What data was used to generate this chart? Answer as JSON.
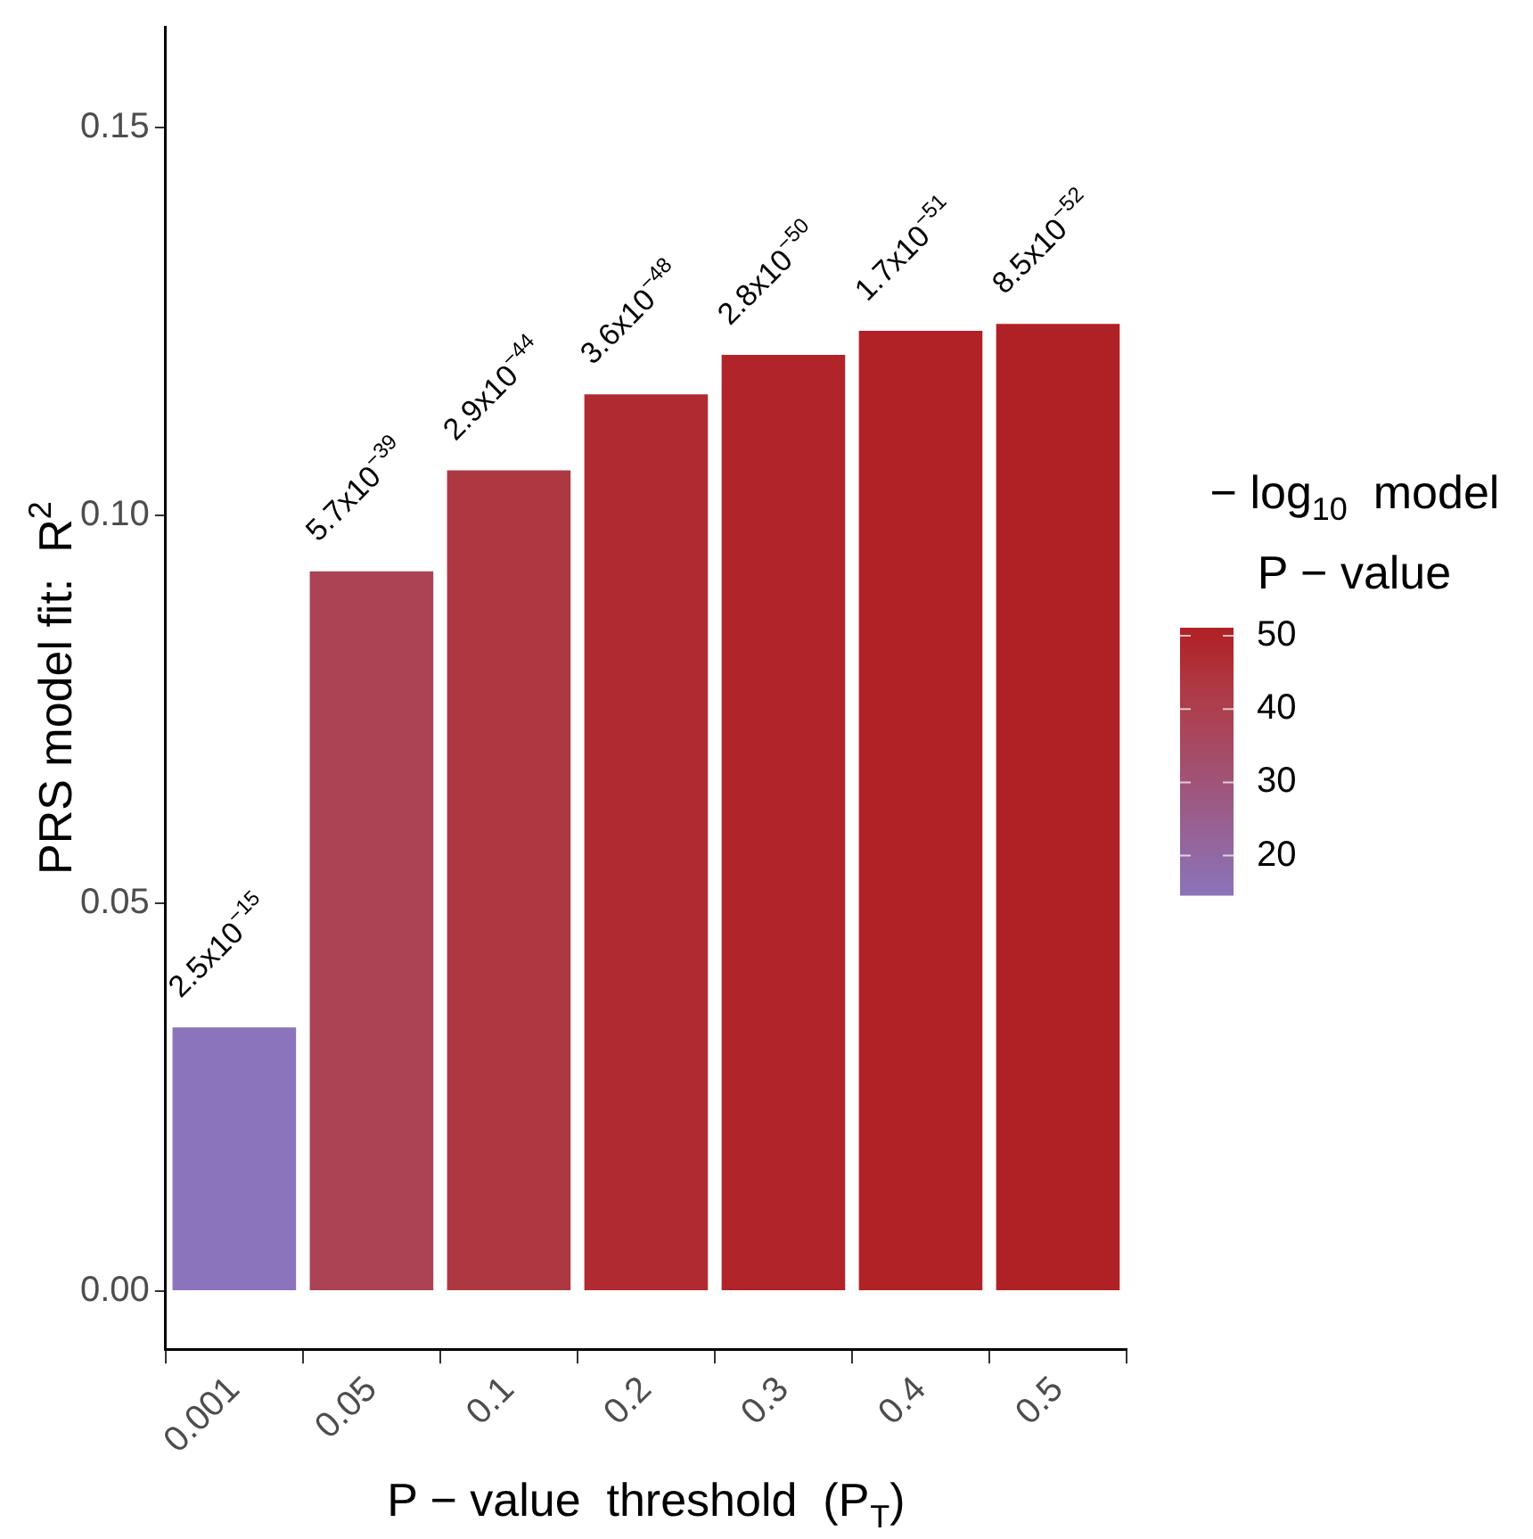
{
  "chart_data": {
    "type": "bar",
    "xlabel": "P − value  threshold  (P$_{T}$)",
    "ylabel": "PRS model fit:  R$^{2}$",
    "legend_title": "− log$_{10}$  model\nP − value",
    "categories": [
      "0.001",
      "0.05",
      "0.1",
      "0.2",
      "0.3",
      "0.4",
      "0.5"
    ],
    "values": [
      0.034,
      0.0928,
      0.1058,
      0.1156,
      0.1207,
      0.1238,
      0.1247
    ],
    "colors": [
      "#8b74bb",
      "#ab4355",
      "#ae3842",
      "#b02a31",
      "#b0242a",
      "#b02226",
      "#b02125"
    ],
    "annotations": [
      {
        "text": "2.5x10$^{−15}$",
        "x": "0.001",
        "y": 0.034
      },
      {
        "text": "5.7x10$^{−39}$",
        "x": "0.05",
        "y": 0.0928
      },
      {
        "text": "2.9x10$^{−44}$",
        "x": "0.1",
        "y": 0.1058
      },
      {
        "text": "3.6x10$^{−48}$",
        "x": "0.2",
        "y": 0.1156
      },
      {
        "text": "2.8x10$^{−50}$",
        "x": "0.3",
        "y": 0.1207
      },
      {
        "text": "1.7x10$^{−51}$",
        "x": "0.4",
        "y": 0.1238
      },
      {
        "text": "8.5x10$^{−52}$",
        "x": "0.5",
        "y": 0.1247
      }
    ],
    "cvalues": [
      14.6,
      38.2,
      43.5,
      47.4,
      49.6,
      50.8,
      51.1
    ],
    "clim": [
      14.6,
      51.1
    ],
    "cticks": [
      20,
      30,
      40,
      50
    ],
    "ylim": [
      -0.0075,
      0.163
    ],
    "yticks": [
      {
        "value": 0,
        "label": "0.00"
      },
      0.05,
      {
        "value": 0.1,
        "label": "0.10"
      },
      0.15
    ],
    "grid": false
  }
}
